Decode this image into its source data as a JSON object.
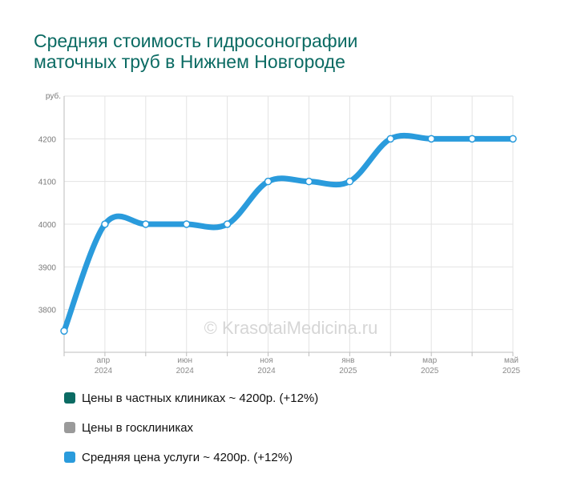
{
  "title": {
    "line1": "Средняя стоимость гидросонографии",
    "line2": "маточных труб в Нижнем Новгороде"
  },
  "watermark": "© KrasotaiMedicina.ru",
  "colors": {
    "title": "#0b6b63",
    "private": "#0b6b63",
    "state": "#9a9a9a",
    "average": "#2a9bdc"
  },
  "chart_data": {
    "type": "line",
    "y_unit": "руб.",
    "y_ticks": [
      3800,
      3900,
      4000,
      4100,
      4200
    ],
    "ylim": [
      3700,
      4300
    ],
    "x_ticks": [
      {
        "month": "апр",
        "year": "2024",
        "index": 1
      },
      {
        "month": "июн",
        "year": "2024",
        "index": 3
      },
      {
        "month": "ноя",
        "year": "2024",
        "index": 5
      },
      {
        "month": "янв",
        "year": "2025",
        "index": 7
      },
      {
        "month": "мар",
        "year": "2025",
        "index": 9
      },
      {
        "month": "май",
        "year": "2025",
        "index": 11
      }
    ],
    "grid": true,
    "series": [
      {
        "name": "Средняя цена услуги ~ 4200р. (+12%)",
        "color": "#2a9bdc",
        "values": [
          3750,
          4000,
          4000,
          4000,
          4000,
          4100,
          4100,
          4100,
          4200,
          4200,
          4200,
          4200
        ]
      }
    ],
    "legend": [
      {
        "label": "Цены в частных клиниках ~ 4200р. (+12%)",
        "color": "#0b6b63"
      },
      {
        "label": "Цены в госклиниках",
        "color": "#9a9a9a"
      },
      {
        "label": "Средняя цена услуги ~ 4200р. (+12%)",
        "color": "#2a9bdc"
      }
    ],
    "legend_position": "bottom"
  }
}
